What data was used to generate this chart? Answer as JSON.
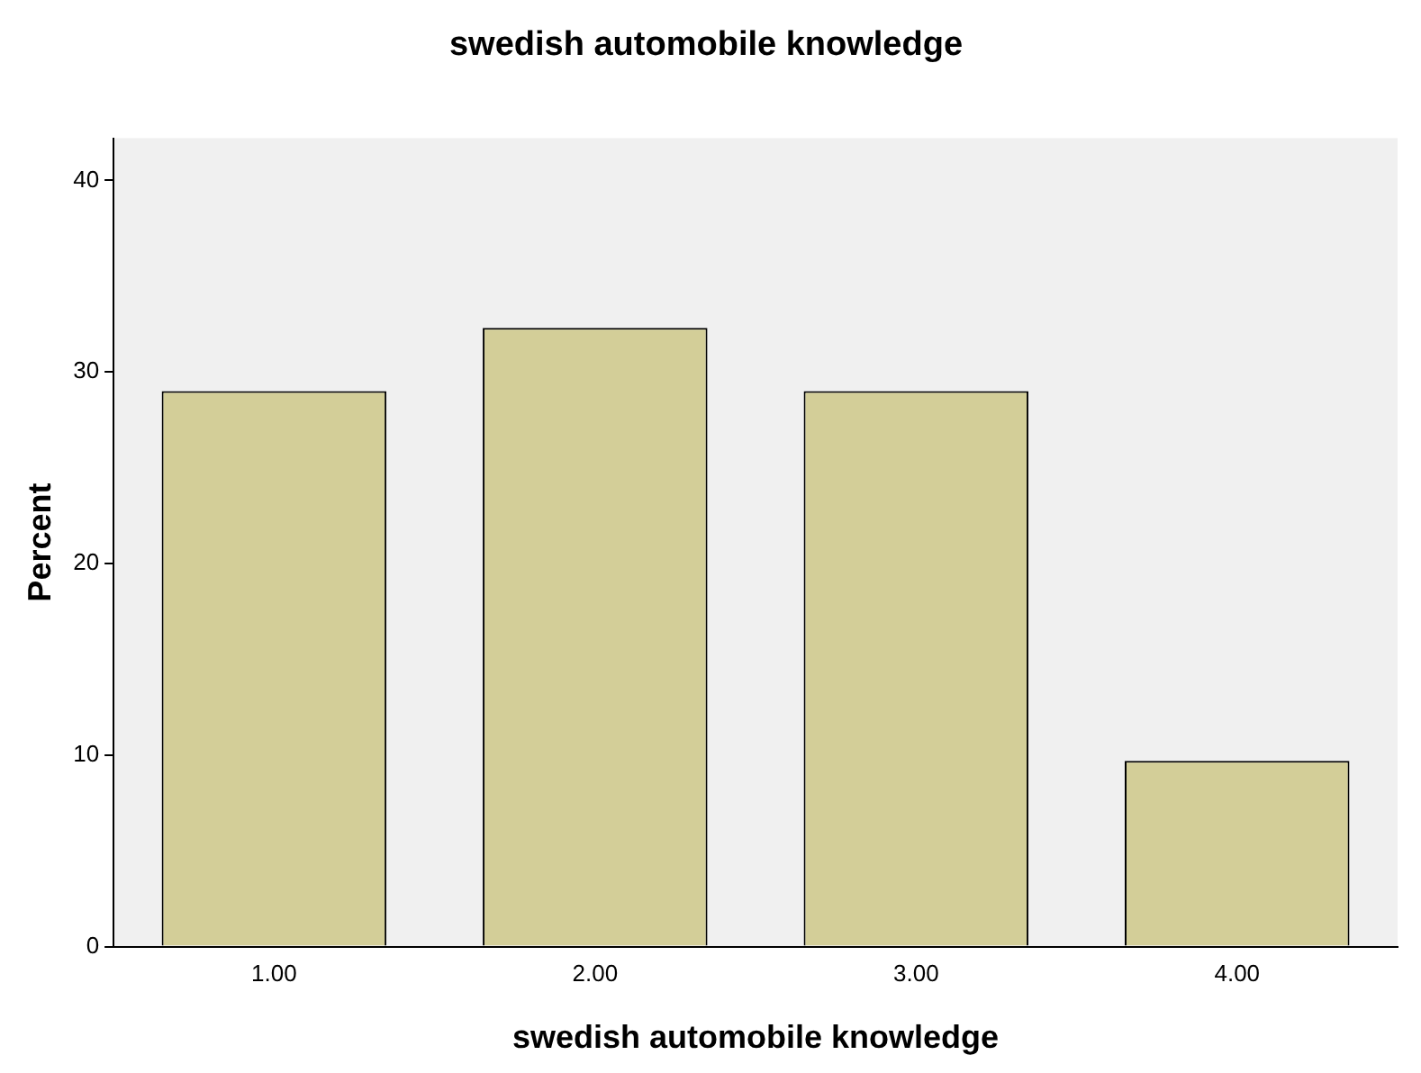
{
  "chart_data": {
    "type": "bar",
    "title": "swedish automobile knowledge",
    "xlabel": "swedish automobile knowledge",
    "ylabel": "Percent",
    "categories": [
      "1.00",
      "2.00",
      "3.00",
      "4.00"
    ],
    "values": [
      29.0,
      32.3,
      29.0,
      9.7
    ],
    "color": "#d3ce98",
    "ylim": [
      0,
      42.2
    ],
    "yticks": [
      0,
      10,
      20,
      30,
      40
    ],
    "grid": false,
    "legend": false
  }
}
